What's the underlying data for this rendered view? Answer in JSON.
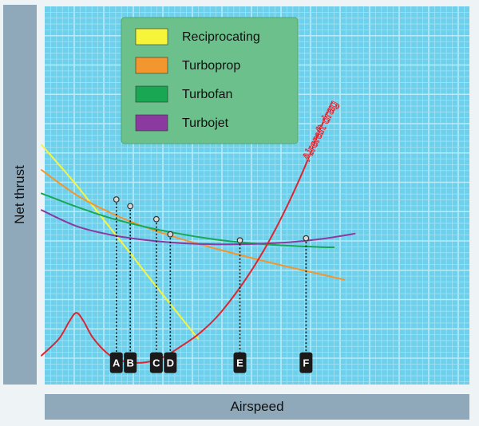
{
  "chart_data": {
    "type": "line",
    "title": "",
    "xlabel": "Airspeed",
    "ylabel": "Net thrust",
    "xlim": [
      0,
      100
    ],
    "ylim": [
      0,
      100
    ],
    "grid": true,
    "legend_position": "top-left",
    "series": [
      {
        "name": "Reciprocating",
        "color": "#f6f53a",
        "points": [
          [
            0,
            78
          ],
          [
            5,
            71.5
          ],
          [
            10,
            64.8
          ],
          [
            15,
            57.5
          ],
          [
            20,
            50.2
          ],
          [
            25,
            43
          ],
          [
            30,
            35.6
          ],
          [
            35,
            28.4
          ],
          [
            40,
            21.2
          ],
          [
            45,
            14
          ]
        ]
      },
      {
        "name": "Turboprop",
        "color": "#f3962e",
        "points": [
          [
            0,
            69.7
          ],
          [
            10,
            61.5
          ],
          [
            20,
            55.5
          ],
          [
            30,
            50.8
          ],
          [
            40,
            47
          ],
          [
            50,
            43.8
          ],
          [
            60,
            40.8
          ],
          [
            70,
            38
          ],
          [
            80,
            35.4
          ],
          [
            87,
            33.5
          ]
        ]
      },
      {
        "name": "Turbofan",
        "color": "#19a754",
        "points": [
          [
            0,
            62
          ],
          [
            10,
            57.6
          ],
          [
            20,
            53.8
          ],
          [
            30,
            50.9
          ],
          [
            40,
            48.6
          ],
          [
            50,
            46.8
          ],
          [
            60,
            45.6
          ],
          [
            70,
            44.8
          ],
          [
            80,
            44.3
          ],
          [
            84,
            44.2
          ]
        ]
      },
      {
        "name": "Turbojet",
        "color": "#8b3aa0",
        "points": [
          [
            0,
            56.5
          ],
          [
            10,
            51.2
          ],
          [
            20,
            48.3
          ],
          [
            30,
            46.6
          ],
          [
            40,
            45.6
          ],
          [
            50,
            45.2
          ],
          [
            60,
            45.3
          ],
          [
            70,
            45.8
          ],
          [
            80,
            46.9
          ],
          [
            90,
            48.7
          ]
        ]
      },
      {
        "name": "Aircraft drag",
        "color": "#dd2532",
        "points": [
          [
            0,
            8.5
          ],
          [
            5,
            14
          ],
          [
            8,
            19.8
          ],
          [
            10,
            22.6
          ],
          [
            12,
            20
          ],
          [
            15,
            14
          ],
          [
            20,
            8.3
          ],
          [
            25,
            6.3
          ],
          [
            30,
            6.3
          ],
          [
            35,
            8
          ],
          [
            40,
            11.5
          ],
          [
            45,
            15.5
          ],
          [
            50,
            20.8
          ],
          [
            55,
            27.8
          ],
          [
            60,
            36
          ],
          [
            65,
            45.5
          ],
          [
            70,
            56.5
          ],
          [
            75,
            69
          ],
          [
            80,
            83
          ],
          [
            83,
            91
          ]
        ]
      }
    ],
    "annotation": "Aircraft drag",
    "intersections": [
      {
        "label": "A",
        "x": 21.5,
        "y": 60
      },
      {
        "label": "B",
        "x": 25.5,
        "y": 57.8
      },
      {
        "label": "C",
        "x": 33,
        "y": 53.5
      },
      {
        "label": "D",
        "x": 37,
        "y": 48.5
      },
      {
        "label": "E",
        "x": 57,
        "y": 46.5
      },
      {
        "label": "F",
        "x": 76,
        "y": 47.2
      }
    ]
  }
}
